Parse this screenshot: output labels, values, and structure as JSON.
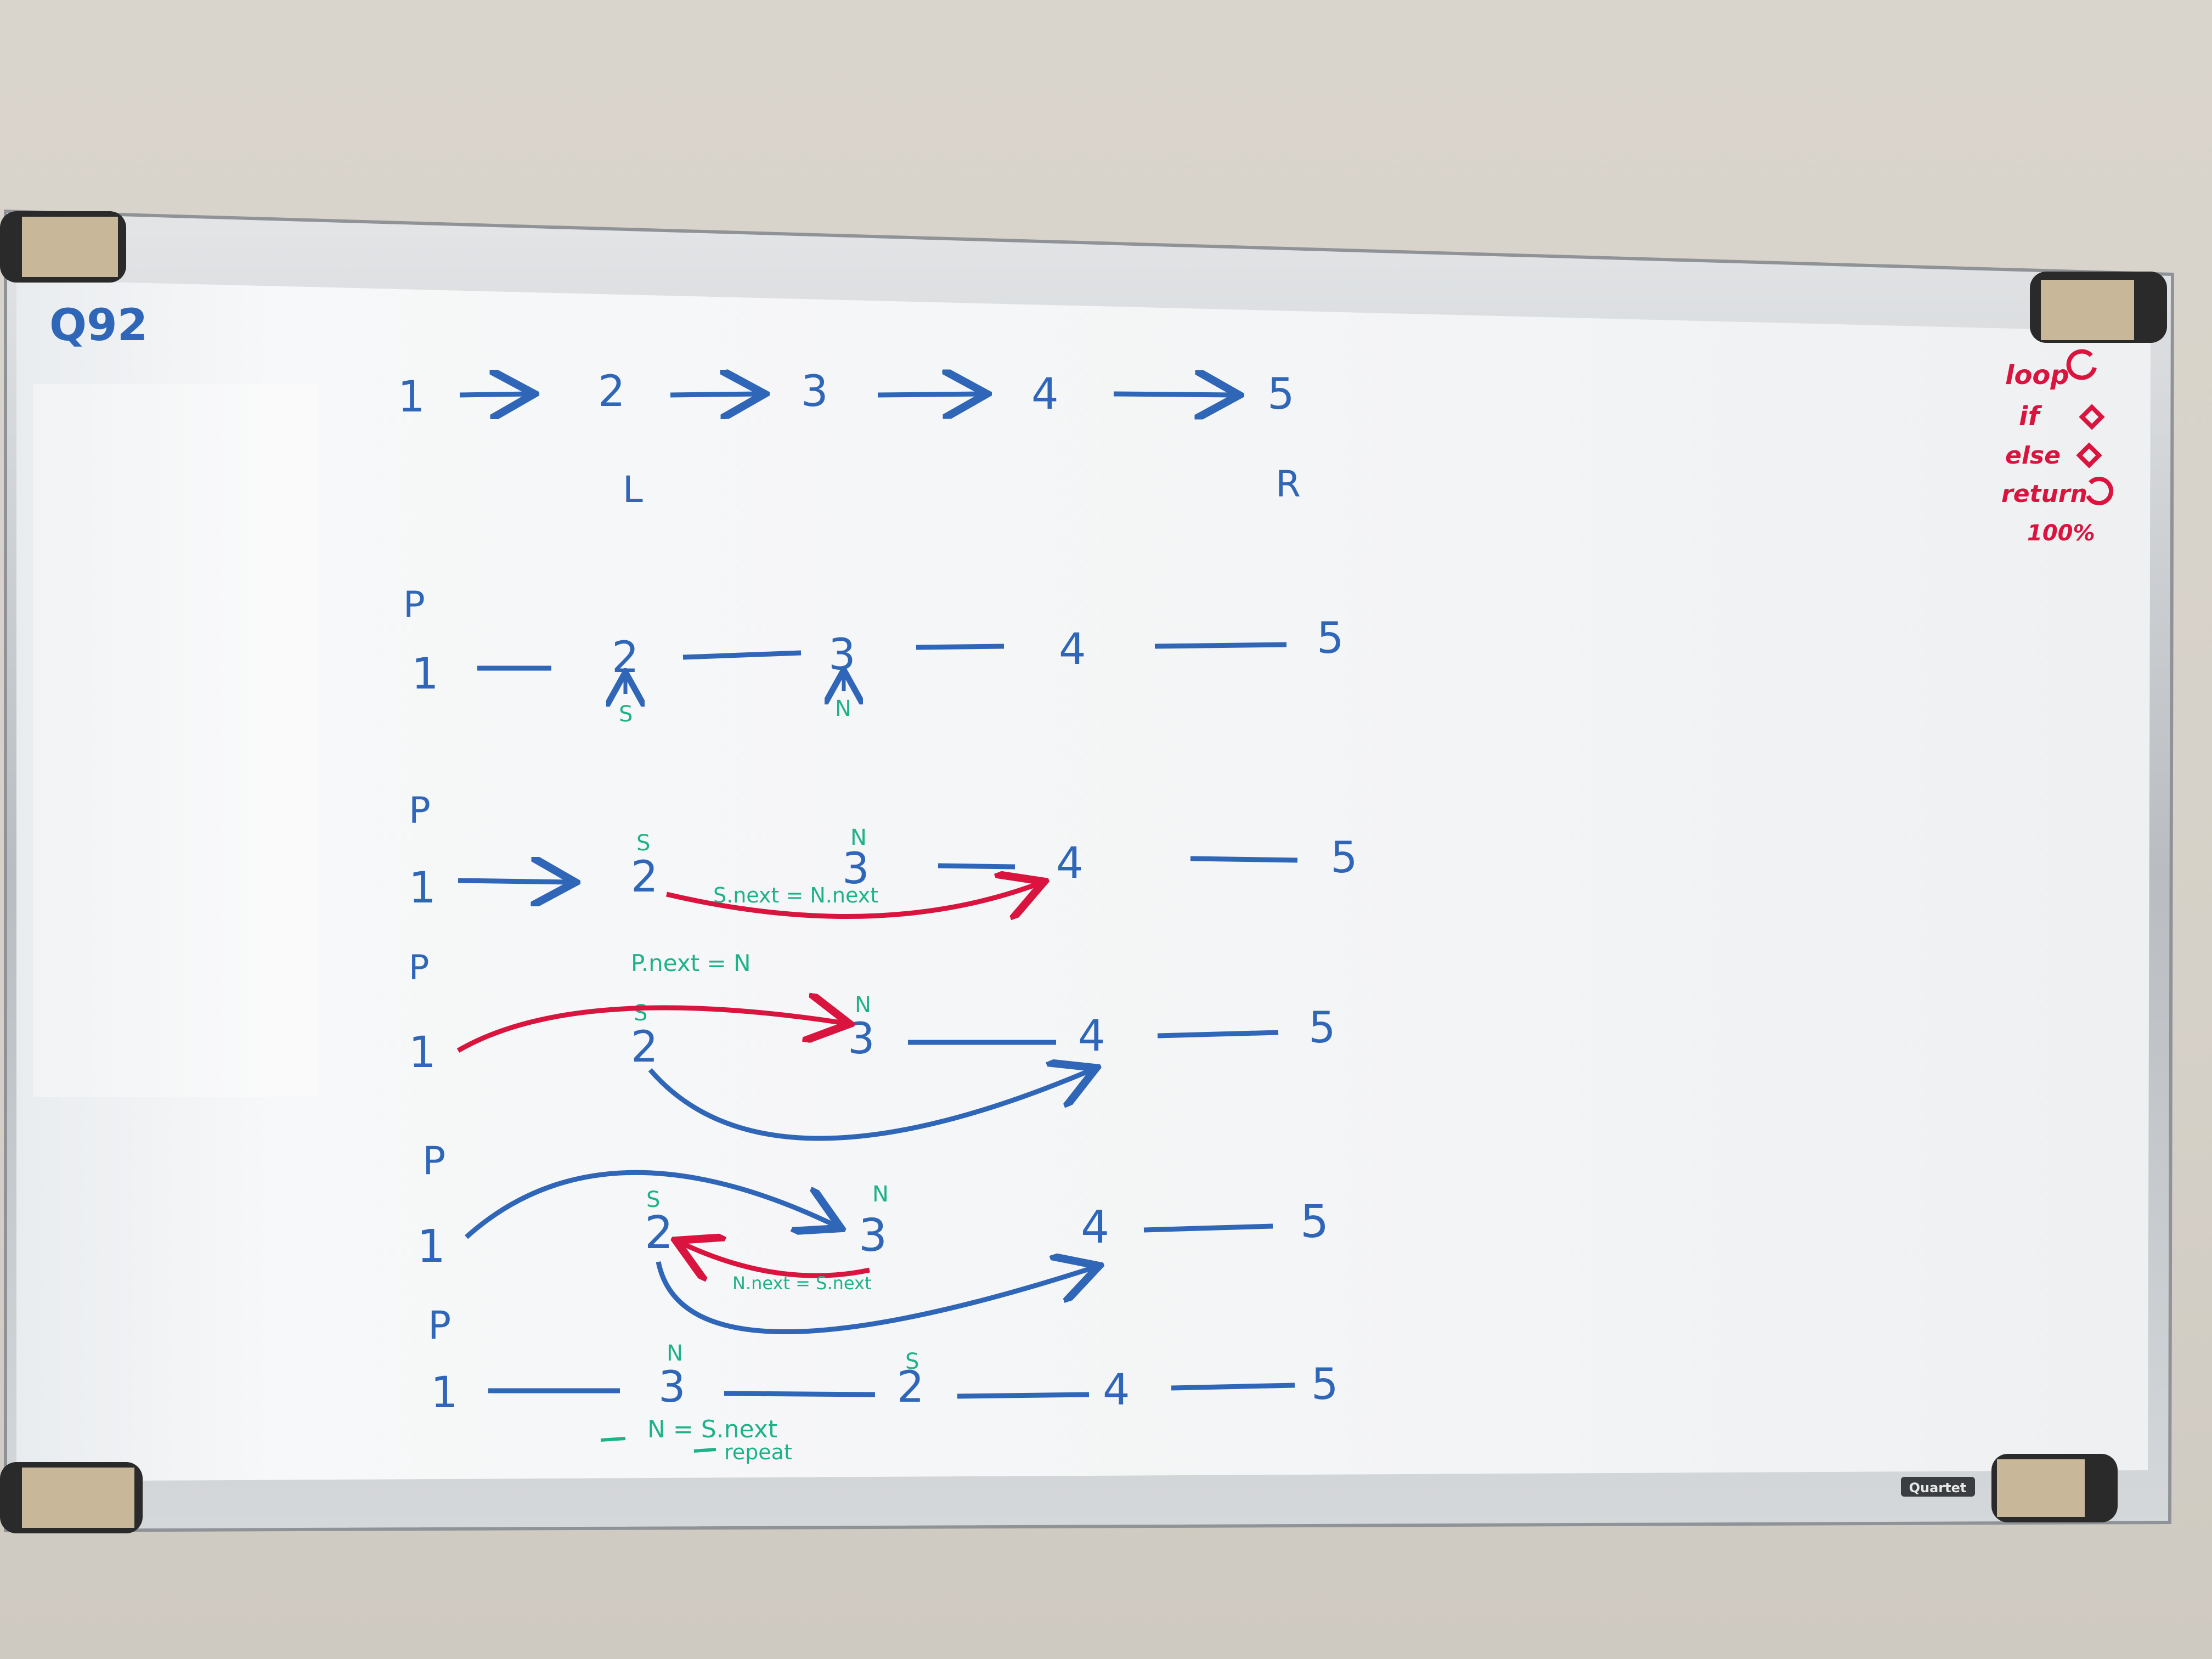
{
  "colors": {
    "wall": "#d8d3ca",
    "board": "#f6f7f8",
    "frame": "#c9ccd0",
    "marker_blue": "#2f66b8",
    "marker_red": "#d9143f",
    "marker_green": "#1fb28a"
  },
  "board": {
    "title": "Q92",
    "brand": "Quartet",
    "legend": {
      "loop": "loop",
      "if": "if",
      "else": "else",
      "return": "return",
      "complexity": "100%"
    },
    "row1": {
      "nodes": [
        "1",
        "2",
        "3",
        "4",
        "5"
      ],
      "left_marker": "L",
      "right_marker": "R"
    },
    "row2": {
      "prev": "P",
      "nodes": [
        "1",
        "2",
        "3",
        "4",
        "5"
      ],
      "s_label": "S",
      "n_label": "N"
    },
    "row3": {
      "prev": "P",
      "nodes": [
        "1",
        "2",
        "3",
        "4",
        "5"
      ],
      "s_label": "S",
      "n_label": "N",
      "note": "S.next = N.next"
    },
    "row4": {
      "prev": "P",
      "nodes": [
        "1",
        "2",
        "3",
        "4",
        "5"
      ],
      "s_label": "S",
      "n_label": "N",
      "note": "P.next = N"
    },
    "row5": {
      "prev": "P",
      "nodes": [
        "1",
        "2",
        "3",
        "4",
        "5"
      ],
      "s_label": "S",
      "n_label": "N",
      "note": "N.next = S.next"
    },
    "row6": {
      "prev": "P",
      "nodes": [
        "1",
        "3",
        "2",
        "4",
        "5"
      ],
      "n_label": "N",
      "s_label": "S",
      "note1": "N = S.next",
      "note2": "repeat"
    }
  }
}
